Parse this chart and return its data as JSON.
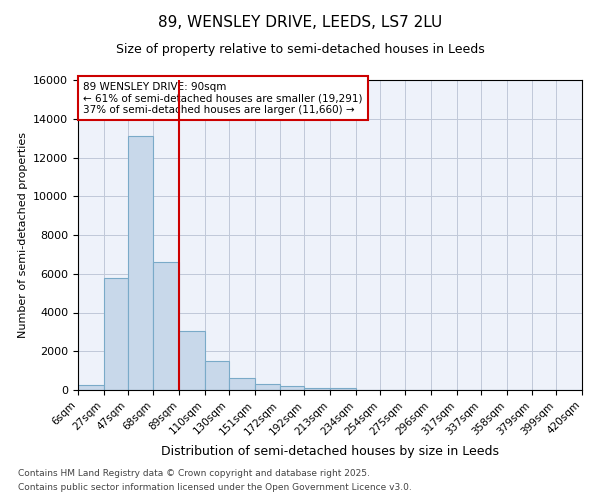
{
  "title": "89, WENSLEY DRIVE, LEEDS, LS7 2LU",
  "subtitle": "Size of property relative to semi-detached houses in Leeds",
  "xlabel": "Distribution of semi-detached houses by size in Leeds",
  "ylabel": "Number of semi-detached properties",
  "property_label": "89 WENSLEY DRIVE: 90sqm",
  "smaller_pct": 61,
  "smaller_count": 19291,
  "larger_pct": 37,
  "larger_count": 11660,
  "bin_edges": [
    6,
    27,
    47,
    68,
    89,
    110,
    130,
    151,
    172,
    192,
    213,
    234,
    254,
    275,
    296,
    317,
    337,
    358,
    379,
    399,
    420
  ],
  "bin_labels": [
    "6sqm",
    "27sqm",
    "47sqm",
    "68sqm",
    "89sqm",
    "110sqm",
    "130sqm",
    "151sqm",
    "172sqm",
    "192sqm",
    "213sqm",
    "234sqm",
    "254sqm",
    "275sqm",
    "296sqm",
    "317sqm",
    "337sqm",
    "358sqm",
    "379sqm",
    "399sqm",
    "420sqm"
  ],
  "counts": [
    270,
    5800,
    13100,
    6600,
    3050,
    1480,
    620,
    310,
    210,
    120,
    90,
    0,
    0,
    0,
    0,
    0,
    0,
    0,
    0,
    0
  ],
  "bar_color": "#c8d8ea",
  "bar_edge_color": "#7aaac8",
  "vline_color": "#cc0000",
  "vline_x": 89,
  "ylim": [
    0,
    16000
  ],
  "yticks": [
    0,
    2000,
    4000,
    6000,
    8000,
    10000,
    12000,
    14000,
    16000
  ],
  "annotation_box_color": "#cc0000",
  "footnote1": "Contains HM Land Registry data © Crown copyright and database right 2025.",
  "footnote2": "Contains public sector information licensed under the Open Government Licence v3.0.",
  "background_color": "#eef2fa",
  "grid_color": "#c0c8d8"
}
